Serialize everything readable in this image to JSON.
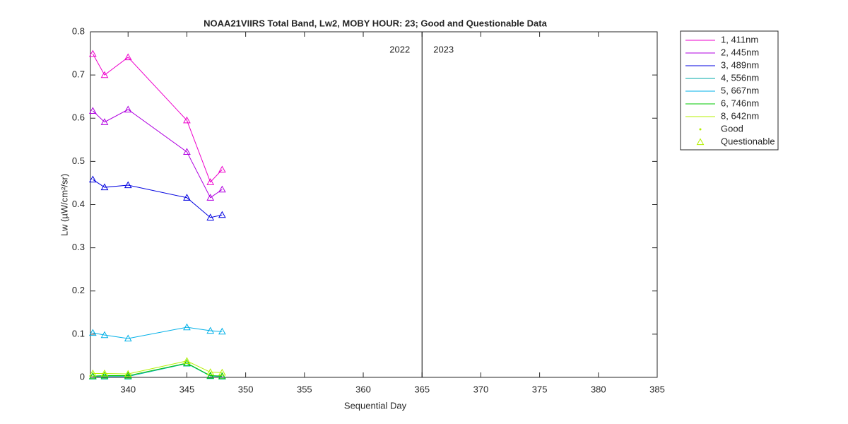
{
  "chart_data": {
    "type": "line",
    "title": "NOAA21VIIRS Total Band,  Lw2, MOBY HOUR: 23;  Good and Questionable Data",
    "x_label": "Sequential Day",
    "y_label": "Lw (µW/cm²/sr)",
    "x": [
      337,
      338,
      340,
      345,
      347,
      348
    ],
    "series": [
      {
        "name": "1, 411nm",
        "color": "#ee00cc",
        "values": [
          0.749,
          0.7,
          0.741,
          0.595,
          0.452,
          0.481
        ]
      },
      {
        "name": "2, 445nm",
        "color": "#b000e0",
        "values": [
          0.617,
          0.591,
          0.62,
          0.522,
          0.416,
          0.435
        ]
      },
      {
        "name": "3, 489nm",
        "color": "#0000e0",
        "values": [
          0.458,
          0.44,
          0.445,
          0.416,
          0.37,
          0.376
        ]
      },
      {
        "name": "4, 556nm",
        "color": "#00aaaa",
        "values": [
          0.002,
          0.002,
          0.002,
          0.032,
          0.003,
          0.002
        ]
      },
      {
        "name": "5, 667nm",
        "color": "#00b0e8",
        "values": [
          0.103,
          0.098,
          0.09,
          0.116,
          0.108,
          0.106
        ]
      },
      {
        "name": "6, 746nm",
        "color": "#00c800",
        "values": [
          0.003,
          0.004,
          0.004,
          0.033,
          0.004,
          0.003
        ]
      },
      {
        "name": "8, 642nm",
        "color": "#b4f000",
        "values": [
          0.009,
          0.009,
          0.008,
          0.038,
          0.012,
          0.011
        ]
      }
    ],
    "marker_legend": [
      "Good",
      "Questionable"
    ],
    "divider": {
      "x": 365,
      "labels": [
        "2022",
        "2023"
      ]
    },
    "xlim": [
      336.8,
      385
    ],
    "xticks": [
      340,
      345,
      350,
      355,
      360,
      365,
      370,
      375,
      380,
      385
    ],
    "ylim": [
      0,
      0.8
    ],
    "yticks": [
      0,
      0.1,
      0.2,
      0.3,
      0.4,
      0.5,
      0.6,
      0.7,
      0.8
    ]
  }
}
